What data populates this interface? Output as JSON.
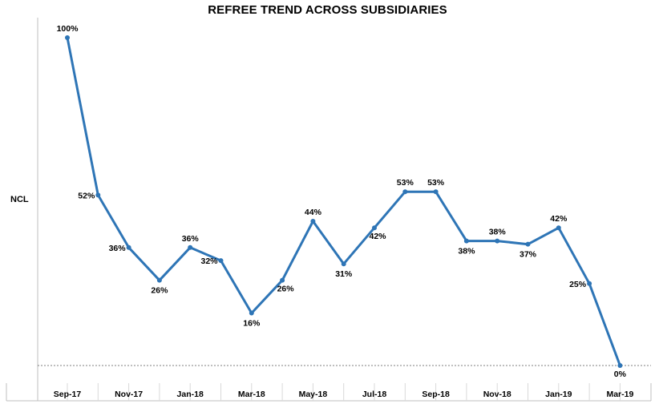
{
  "chart_data": {
    "type": "line",
    "title": "REFREE TREND ACROSS SUBSIDIARIES",
    "y_category_label": "NCL",
    "xlabel": "",
    "ylabel": "",
    "ylim": [
      0,
      100
    ],
    "grid": false,
    "legend": "none",
    "x": [
      "Sep-17",
      "Oct-17",
      "Nov-17",
      "Dec-17",
      "Jan-18",
      "Feb-18",
      "Mar-18",
      "Apr-18",
      "May-18",
      "Jun-18",
      "Jul-18",
      "Aug-18",
      "Sep-18",
      "Oct-18",
      "Nov-18",
      "Dec-18",
      "Jan-19",
      "Feb-19",
      "Mar-19"
    ],
    "tick_labels": [
      "Sep-17",
      "Nov-17",
      "Jan-18",
      "Mar-18",
      "May-18",
      "Jul-18",
      "Sep-18",
      "Nov-18",
      "Jan-19",
      "Mar-19"
    ],
    "series": [
      {
        "values": [
          100,
          52,
          36,
          26,
          36,
          32,
          16,
          26,
          44,
          31,
          42,
          53,
          53,
          38,
          38,
          37,
          42,
          25,
          0
        ],
        "labels": [
          "100%",
          "52%",
          "36%",
          "26%",
          "36%",
          "32%",
          "16%",
          "26%",
          "44%",
          "31%",
          "42%",
          "53%",
          "53%",
          "38%",
          "38%",
          "37%",
          "42%",
          "25%",
          "0%"
        ],
        "color": "#2e75b6"
      }
    ]
  }
}
